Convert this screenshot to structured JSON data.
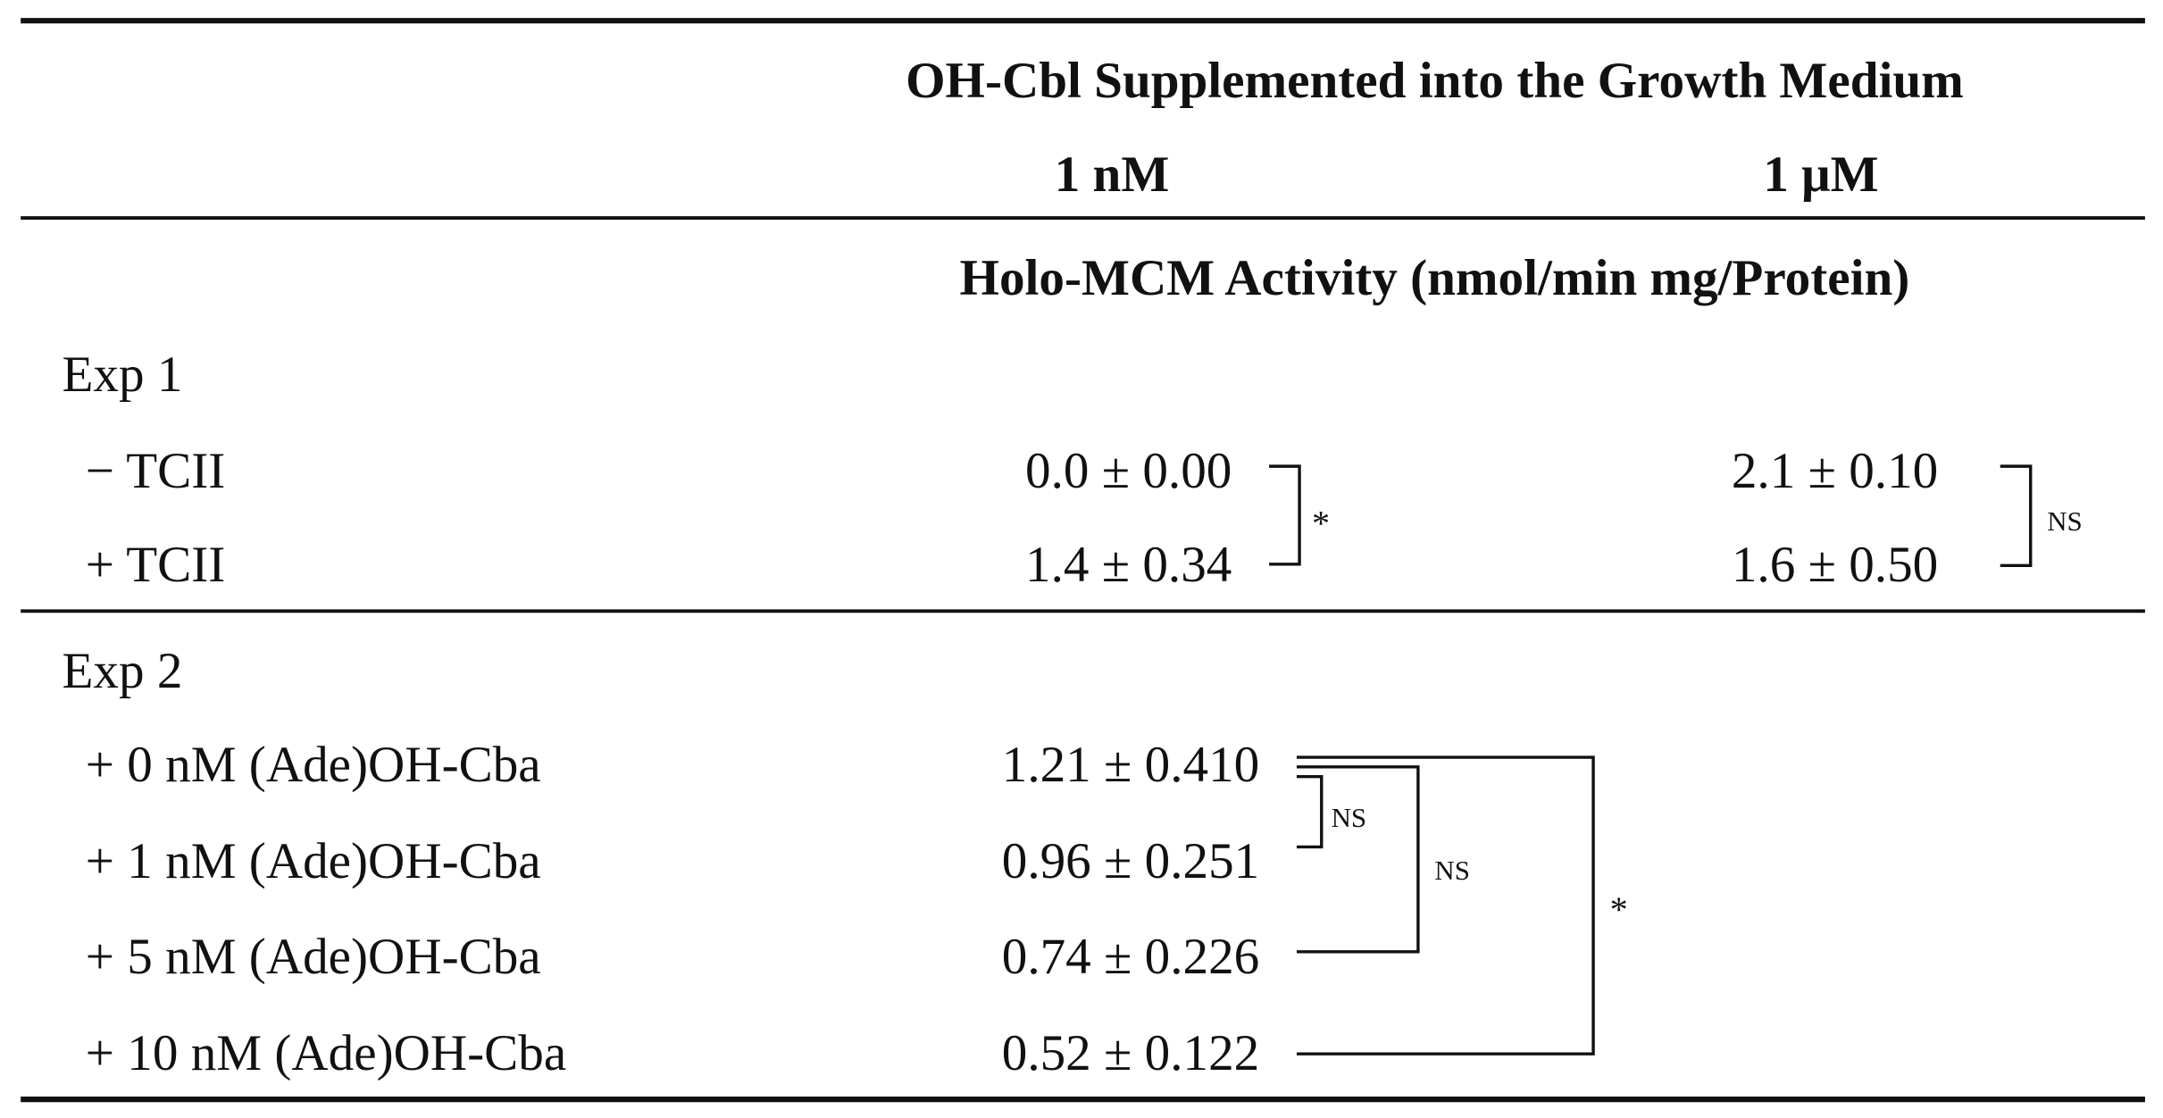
{
  "table": {
    "header": {
      "title": "OH-Cbl Supplemented into the Growth Medium",
      "columns": [
        "1 nM",
        "1 μM"
      ],
      "units": "Holo-MCM Activity (nmol/min mg/Protein)"
    },
    "sections": [
      {
        "label": "Exp 1",
        "rows": [
          [
            "− TCII",
            "0.0 ± 0.00",
            "2.1 ± 0.10"
          ],
          [
            "+ TCII",
            "1.4 ± 0.34",
            "1.6 ± 0.50"
          ]
        ],
        "significance": [
          "*",
          "NS"
        ]
      },
      {
        "label": "Exp 2",
        "rows": [
          [
            "+ 0 nM (Ade)OH-Cba",
            "1.21 ± 0.410"
          ],
          [
            "+ 1 nM (Ade)OH-Cba",
            "0.96 ± 0.251"
          ],
          [
            "+ 5 nM (Ade)OH-Cba",
            "0.74 ± 0.226"
          ],
          [
            "+ 10 nM (Ade)OH-Cba",
            "0.52 ± 0.122"
          ]
        ],
        "significance": [
          "NS",
          "NS",
          "*"
        ]
      }
    ]
  }
}
